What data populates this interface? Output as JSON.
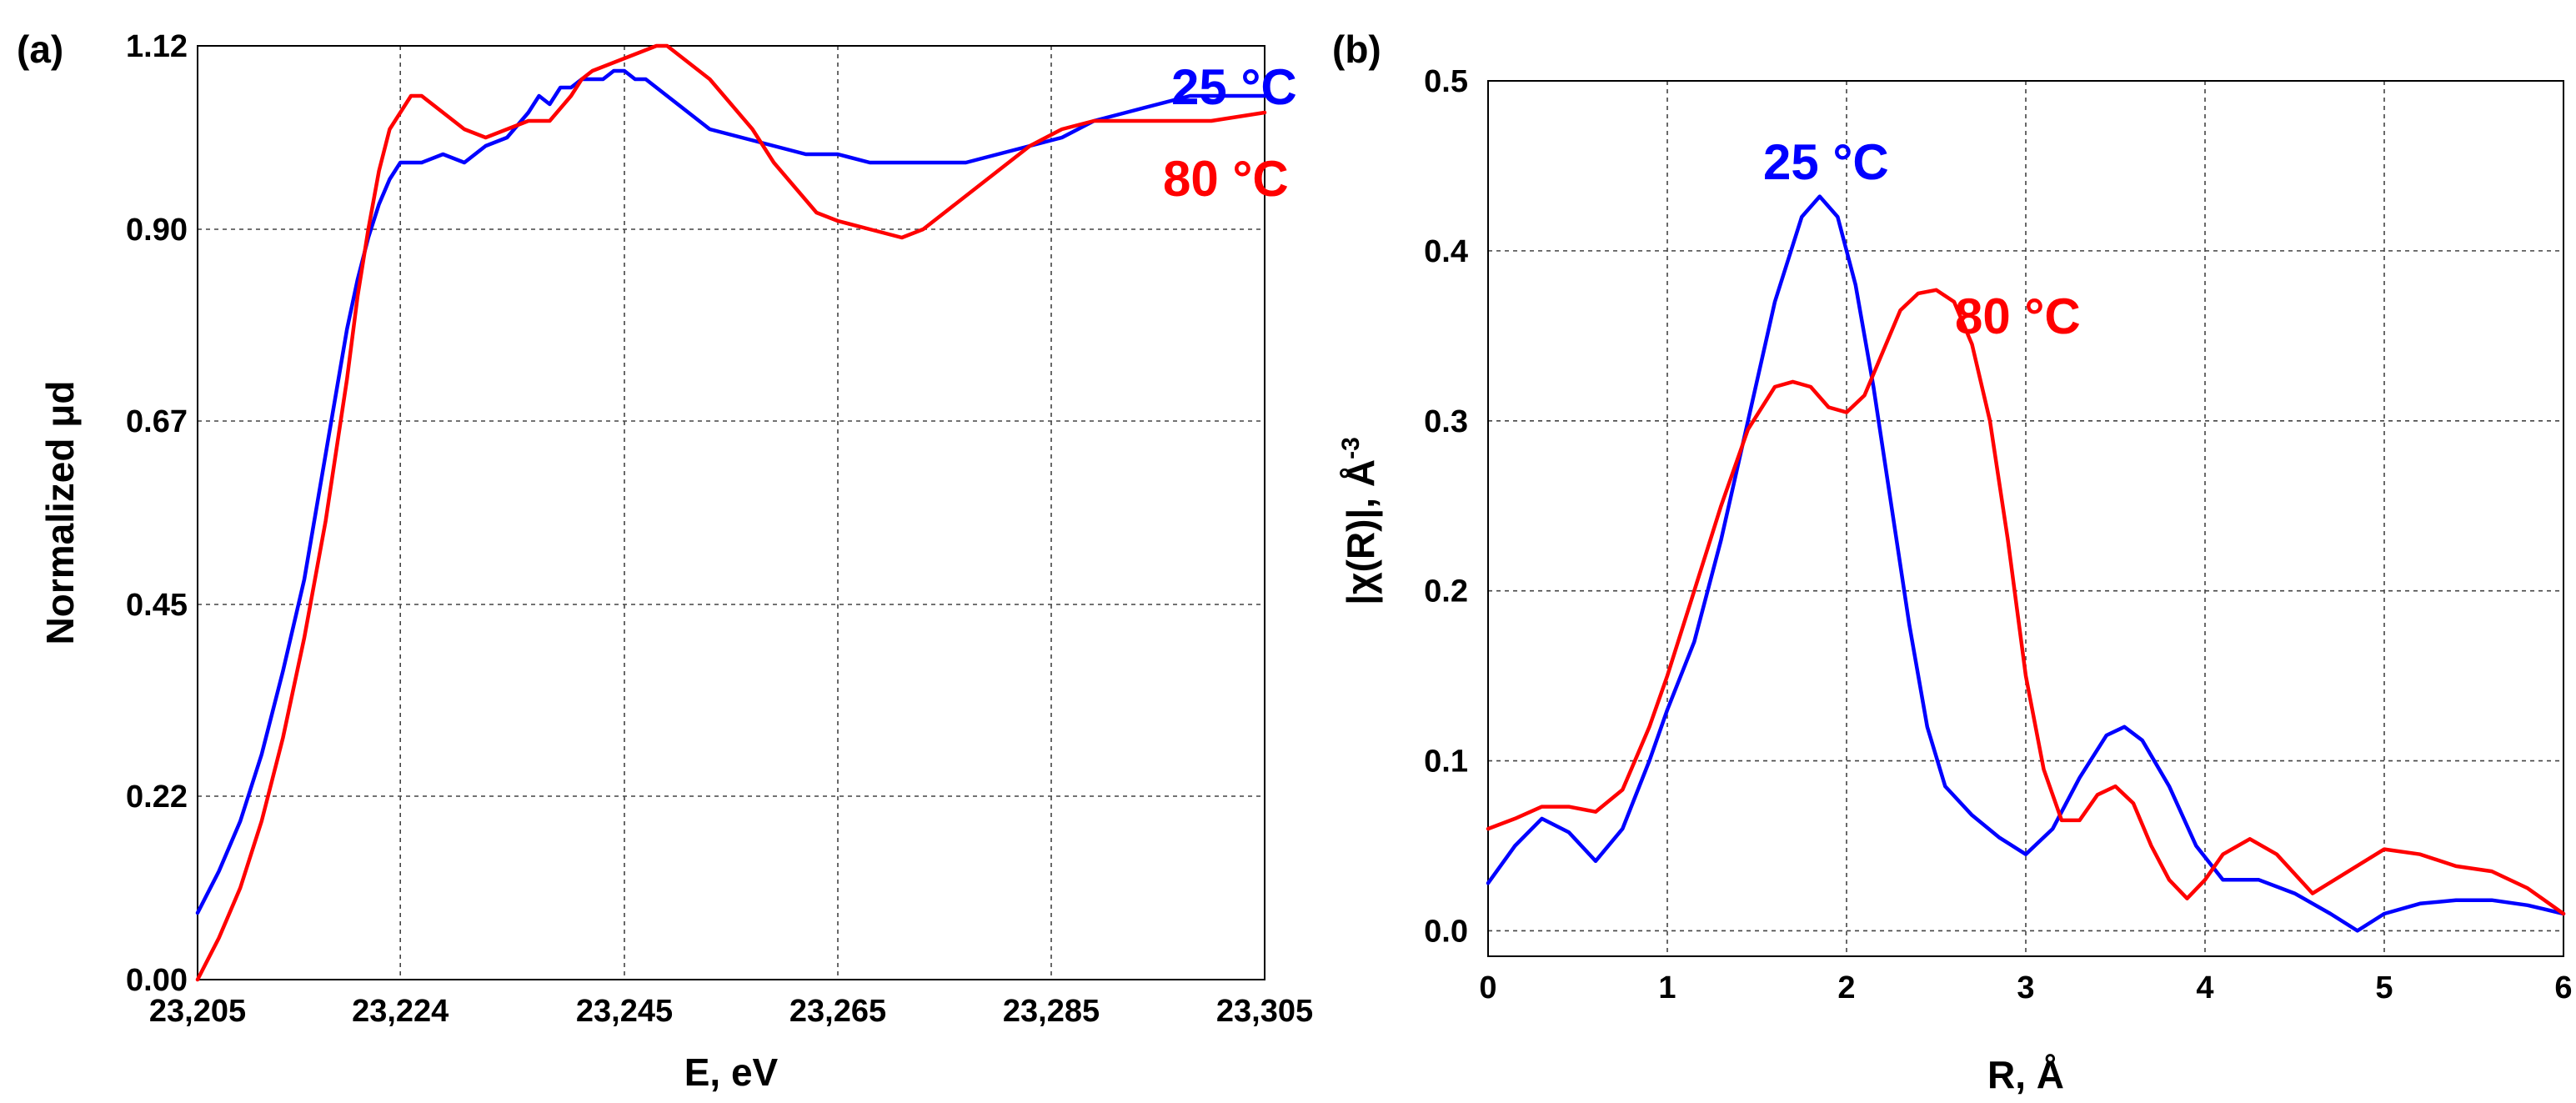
{
  "colors": {
    "blue": "#0000ff",
    "red": "#ff0000"
  },
  "panels": [
    {
      "panel_label": "(a)",
      "chart_data": {
        "type": "line",
        "title": "",
        "xlabel": "E, eV",
        "ylabel": "Normalized μd",
        "xlim": [
          23205,
          23305
        ],
        "ylim": [
          0,
          1.12
        ],
        "xticks": [
          23205,
          23224,
          23245,
          23265,
          23285,
          23305
        ],
        "xtick_labels": [
          "23,205",
          "23,224",
          "23,245",
          "23,265",
          "23,285",
          "23,305"
        ],
        "yticks": [
          0,
          0.22,
          0.45,
          0.67,
          0.9,
          1.12
        ],
        "ytick_labels": [
          "0.00",
          "0.22",
          "0.45",
          "0.67",
          "0.90",
          "1.12"
        ],
        "grid": true,
        "series": [
          {
            "name": "25 °C",
            "color": "#0000ff",
            "x": [
              23205,
              23207,
              23209,
              23211,
              23213,
              23215,
              23217,
              23219,
              23220,
              23221,
              23222,
              23223,
              23224,
              23226,
              23228,
              23230,
              23232,
              23234,
              23236,
              23237,
              23238,
              23239,
              23240,
              23241,
              23242,
              23243,
              23244,
              23245,
              23246,
              23247,
              23249,
              23251,
              23253,
              23256,
              23259,
              23262,
              23265,
              23268,
              23271,
              23274,
              23277,
              23280,
              23283,
              23286,
              23289,
              23292,
              23295,
              23298,
              23301,
              23305
            ],
            "values": [
              0.08,
              0.13,
              0.19,
              0.27,
              0.37,
              0.48,
              0.63,
              0.78,
              0.84,
              0.89,
              0.93,
              0.96,
              0.98,
              0.98,
              0.99,
              0.98,
              1.0,
              1.01,
              1.04,
              1.06,
              1.05,
              1.07,
              1.07,
              1.08,
              1.08,
              1.08,
              1.09,
              1.09,
              1.08,
              1.08,
              1.06,
              1.04,
              1.02,
              1.01,
              1.0,
              0.99,
              0.99,
              0.98,
              0.98,
              0.98,
              0.98,
              0.99,
              1.0,
              1.01,
              1.03,
              1.04,
              1.05,
              1.06,
              1.06,
              1.06
            ]
          },
          {
            "name": "80 °C",
            "color": "#ff0000",
            "x": [
              23205,
              23207,
              23209,
              23211,
              23213,
              23215,
              23217,
              23219,
              23220,
              23221,
              23222,
              23223,
              23224,
              23225,
              23226,
              23228,
              23230,
              23232,
              23234,
              23236,
              23238,
              23240,
              23241,
              23242,
              23244,
              23246,
              23248,
              23249,
              23250,
              23251,
              23252,
              23253,
              23255,
              23257,
              23259,
              23261,
              23263,
              23265,
              23268,
              23271,
              23273,
              23275,
              23277,
              23280,
              23283,
              23286,
              23289,
              23292,
              23296,
              23300,
              23305
            ],
            "values": [
              0.0,
              0.05,
              0.11,
              0.19,
              0.29,
              0.41,
              0.55,
              0.72,
              0.82,
              0.9,
              0.97,
              1.02,
              1.04,
              1.06,
              1.06,
              1.04,
              1.02,
              1.01,
              1.02,
              1.03,
              1.03,
              1.06,
              1.08,
              1.09,
              1.1,
              1.11,
              1.12,
              1.12,
              1.11,
              1.1,
              1.09,
              1.08,
              1.05,
              1.02,
              0.98,
              0.95,
              0.92,
              0.91,
              0.9,
              0.89,
              0.9,
              0.92,
              0.94,
              0.97,
              1.0,
              1.02,
              1.03,
              1.03,
              1.03,
              1.03,
              1.04
            ]
          }
        ],
        "annotations": [
          "25 °C",
          "80 °C"
        ]
      }
    },
    {
      "panel_label": "(b)",
      "chart_data": {
        "type": "line",
        "title": "",
        "xlabel": "R, Å",
        "ylabel": "|χ(R)|, Å",
        "ylabel_superscript": "-3",
        "xlim": [
          0,
          6
        ],
        "ylim": [
          -0.015,
          0.5
        ],
        "xticks": [
          0,
          1,
          2,
          3,
          4,
          5,
          6
        ],
        "xtick_labels": [
          "0",
          "1",
          "2",
          "3",
          "4",
          "5",
          "6"
        ],
        "yticks": [
          0,
          0.1,
          0.2,
          0.3,
          0.4,
          0.5
        ],
        "ytick_labels": [
          "0.0",
          "0.1",
          "0.2",
          "0.3",
          "0.4",
          "0.5"
        ],
        "grid": true,
        "series": [
          {
            "name": "25 °C",
            "color": "#0000ff",
            "x": [
              0,
              0.15,
              0.3,
              0.45,
              0.6,
              0.75,
              0.9,
              1.0,
              1.15,
              1.3,
              1.45,
              1.6,
              1.75,
              1.85,
              1.95,
              2.05,
              2.15,
              2.25,
              2.35,
              2.45,
              2.55,
              2.7,
              2.85,
              3.0,
              3.15,
              3.3,
              3.45,
              3.55,
              3.65,
              3.8,
              3.95,
              4.1,
              4.3,
              4.5,
              4.7,
              4.85,
              5.0,
              5.2,
              5.4,
              5.6,
              5.8,
              6.0
            ],
            "values": [
              0.028,
              0.05,
              0.066,
              0.058,
              0.041,
              0.06,
              0.1,
              0.13,
              0.17,
              0.23,
              0.3,
              0.37,
              0.42,
              0.432,
              0.42,
              0.38,
              0.32,
              0.25,
              0.18,
              0.12,
              0.085,
              0.068,
              0.055,
              0.045,
              0.06,
              0.09,
              0.115,
              0.12,
              0.112,
              0.085,
              0.05,
              0.03,
              0.03,
              0.022,
              0.01,
              0.0,
              0.01,
              0.016,
              0.018,
              0.018,
              0.015,
              0.01
            ]
          },
          {
            "name": "80 °C",
            "color": "#ff0000",
            "x": [
              0,
              0.15,
              0.3,
              0.45,
              0.6,
              0.75,
              0.9,
              1.0,
              1.15,
              1.3,
              1.45,
              1.6,
              1.7,
              1.8,
              1.9,
              2.0,
              2.1,
              2.2,
              2.3,
              2.4,
              2.5,
              2.6,
              2.7,
              2.8,
              2.9,
              3.0,
              3.1,
              3.2,
              3.3,
              3.4,
              3.5,
              3.6,
              3.7,
              3.8,
              3.9,
              4.0,
              4.1,
              4.25,
              4.4,
              4.6,
              4.8,
              5.0,
              5.2,
              5.4,
              5.6,
              5.8,
              6.0
            ],
            "values": [
              0.06,
              0.066,
              0.073,
              0.073,
              0.07,
              0.083,
              0.12,
              0.15,
              0.2,
              0.25,
              0.295,
              0.32,
              0.323,
              0.32,
              0.308,
              0.305,
              0.315,
              0.34,
              0.365,
              0.375,
              0.377,
              0.37,
              0.345,
              0.3,
              0.23,
              0.15,
              0.095,
              0.065,
              0.065,
              0.08,
              0.085,
              0.075,
              0.05,
              0.03,
              0.019,
              0.03,
              0.045,
              0.054,
              0.045,
              0.022,
              0.035,
              0.048,
              0.045,
              0.038,
              0.035,
              0.025,
              0.01
            ]
          }
        ],
        "annotations": [
          "25 °C",
          "80 °C"
        ]
      }
    }
  ]
}
